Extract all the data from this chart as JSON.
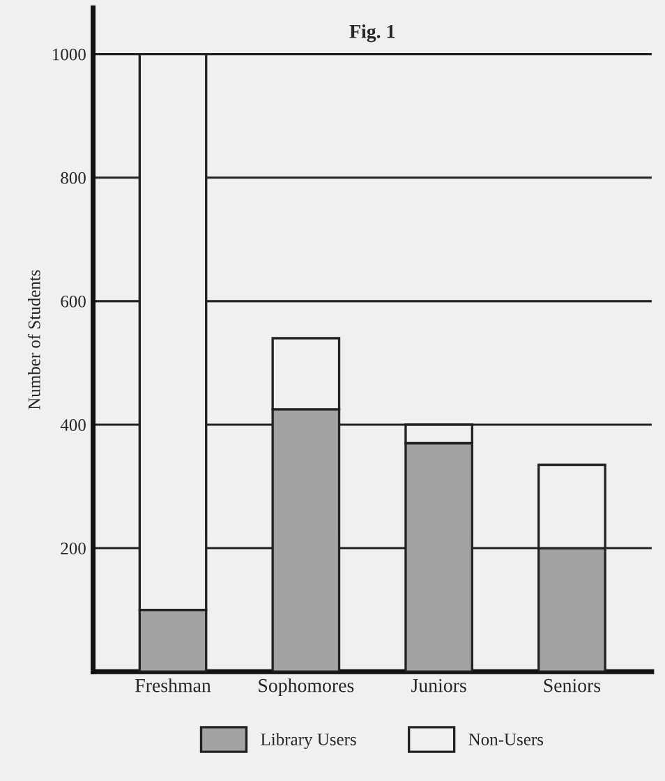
{
  "chart_data": {
    "type": "bar",
    "title": "Fig. 1",
    "ylabel": "Number of Students",
    "categories": [
      "Freshman",
      "Sophomores",
      "Juniors",
      "Seniors"
    ],
    "stacked": true,
    "series": [
      {
        "name": "Library Users",
        "color": "#a3a3a3",
        "values": [
          100,
          425,
          370,
          200
        ]
      },
      {
        "name": "Non-Users",
        "color": "#f0f0f0",
        "values": [
          900,
          115,
          30,
          135
        ]
      }
    ],
    "ylim": [
      0,
      1075
    ],
    "yticks": [
      200,
      400,
      600,
      800,
      1000
    ],
    "grid": "y",
    "legend": "bottom"
  }
}
